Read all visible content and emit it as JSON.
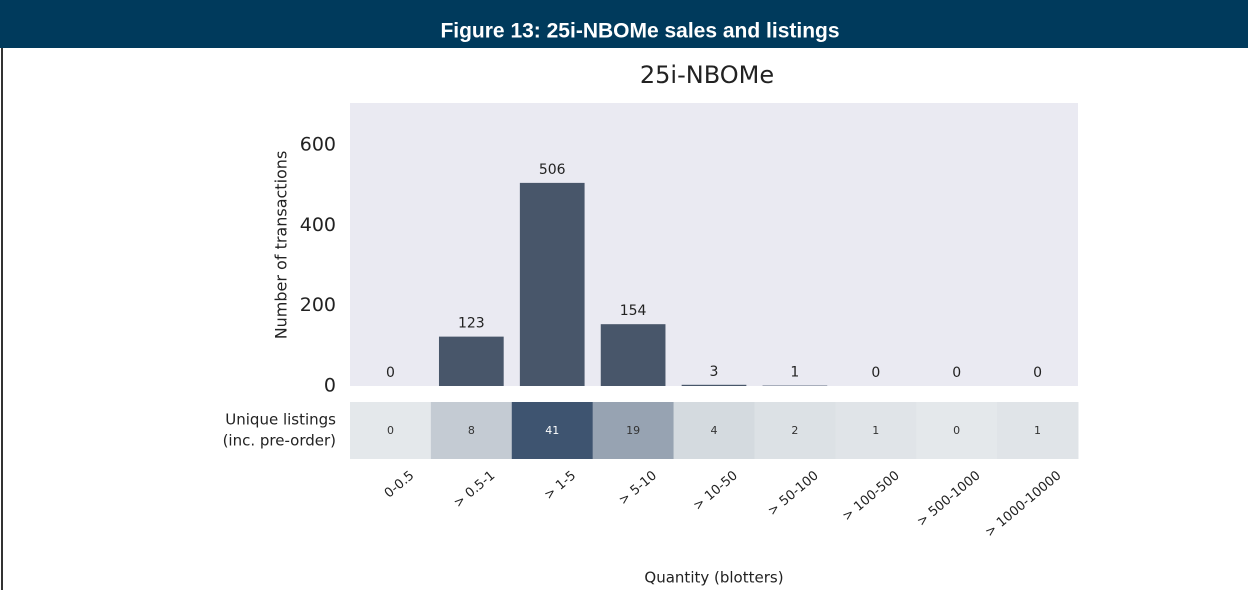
{
  "header": {
    "title": "Figure 13: 25i-NBOMe sales and listings"
  },
  "chart_data": {
    "type": "bar",
    "title": "25i-NBOMe",
    "y_label": "Number of transactions",
    "x_label": "Quantity (blotters)",
    "categories": [
      "0-0.5",
      "> 0.5-1",
      "> 1-5",
      "> 5-10",
      "> 10-50",
      "> 50-100",
      "> 100-500",
      "> 500-1000",
      "> 1000-10000"
    ],
    "values": [
      0,
      123,
      506,
      154,
      3,
      1,
      0,
      0,
      0
    ],
    "color": "#48566a",
    "ylim": [
      0,
      705
    ],
    "yticks": [
      0,
      200,
      400,
      600
    ],
    "grid": false,
    "heatmap": {
      "label": [
        "Unique listings",
        "(inc. pre-order)"
      ],
      "values": [
        0,
        8,
        41,
        19,
        4,
        2,
        1,
        0,
        1
      ],
      "colors": [
        "#e4e8eb",
        "#3e5470"
      ]
    }
  }
}
